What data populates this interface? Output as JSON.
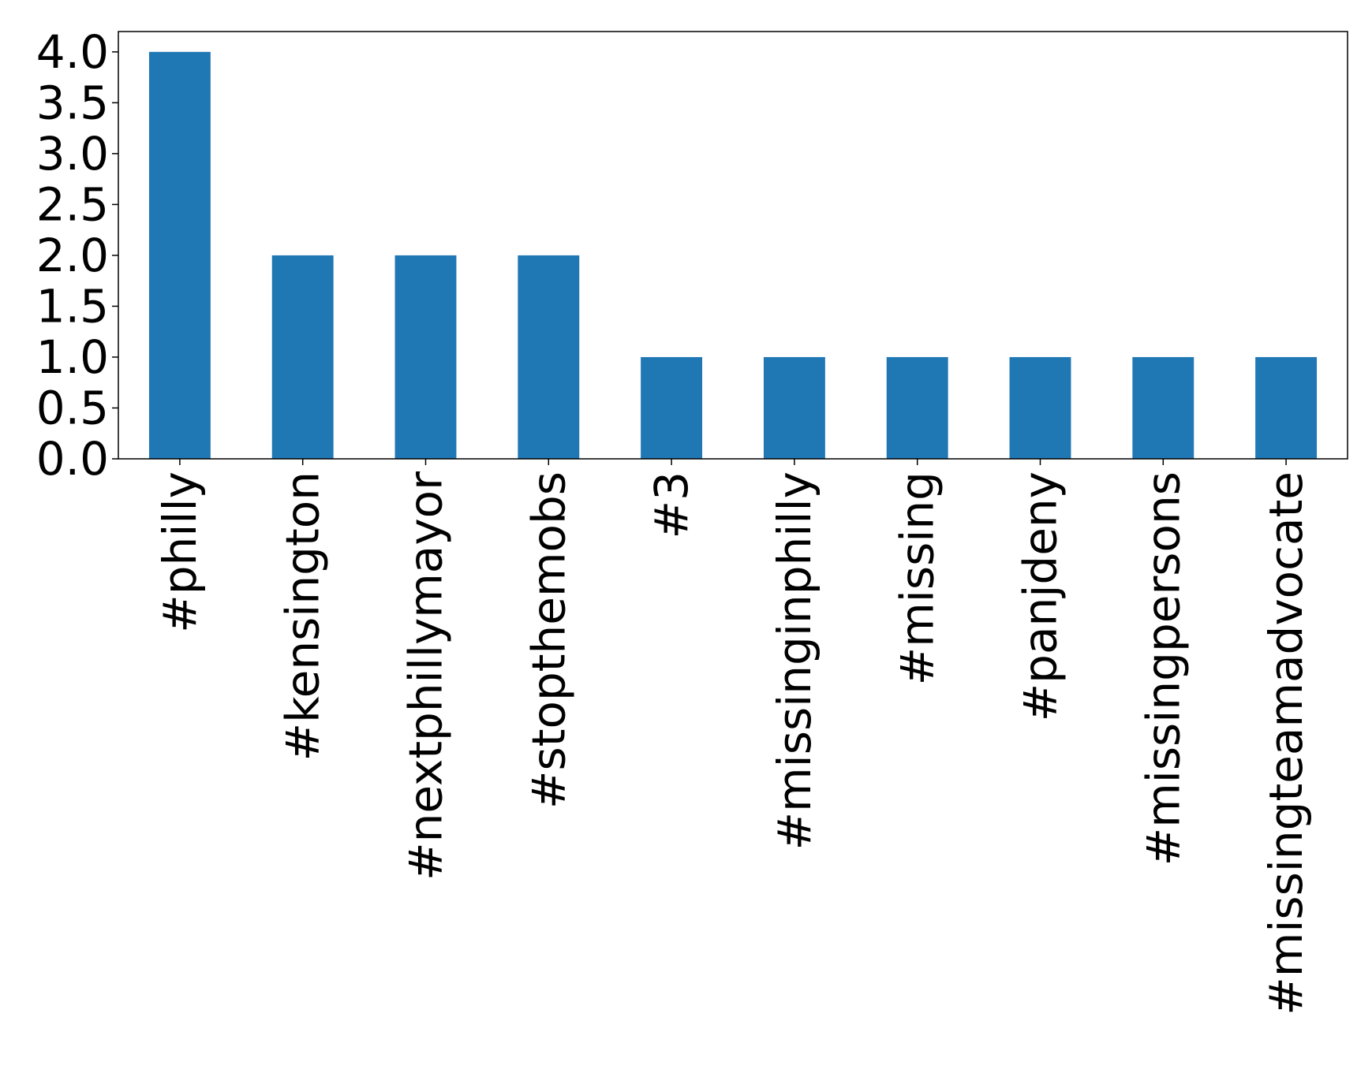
{
  "chart_data": {
    "type": "bar",
    "title": "",
    "xlabel": "",
    "ylabel": "",
    "categories": [
      "#philly",
      "#kensington",
      "#nextphillymayor",
      "#stopthemobs",
      "#3",
      "#missinginphilly",
      "#missing",
      "#panjdeny",
      "#missingpersons",
      "#missingteamadvocate"
    ],
    "values": [
      4,
      2,
      2,
      2,
      1,
      1,
      1,
      1,
      1,
      1
    ],
    "ylim": [
      0,
      4.2
    ],
    "yticks": [
      "0.0",
      "0.5",
      "1.0",
      "1.5",
      "2.0",
      "2.5",
      "3.0",
      "3.5",
      "4.0"
    ],
    "bar_color": "#1f77b4",
    "grid": false,
    "legend": "none"
  }
}
